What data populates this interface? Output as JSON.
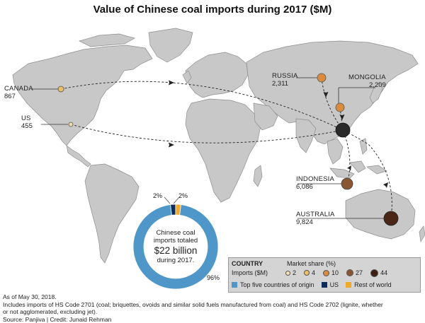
{
  "title": "Value of Chinese coal imports during 2017 ($M)",
  "hub": {
    "name": "China"
  },
  "countries": [
    {
      "name": "CANADA",
      "value": "867",
      "bubble_color": "#e9c06a"
    },
    {
      "name": "US",
      "value": "455",
      "bubble_color": "#f1d9a8"
    },
    {
      "name": "RUSSIA",
      "value": "2,311",
      "bubble_color": "#d98c3e"
    },
    {
      "name": "MONGOLIA",
      "value": "2,209",
      "bubble_color": "#d98c3e"
    },
    {
      "name": "INDONESIA",
      "value": "6,086",
      "bubble_color": "#8a5632"
    },
    {
      "name": "AUSTRALIA",
      "value": "9,824",
      "bubble_color": "#4a2616"
    }
  ],
  "donut": {
    "line1": "Chinese coal",
    "line2": "imports totaled",
    "big": "$22 billion",
    "line3": "during 2017.",
    "segments": [
      {
        "name": "Top five countries of origin",
        "percent": 96,
        "label": "96%",
        "color": "#4e97c8"
      },
      {
        "name": "US",
        "percent": 2,
        "label": "2%",
        "color": "#0d2c5c"
      },
      {
        "name": "Rest of world",
        "percent": 2,
        "label": "2%",
        "color": "#f0a92a"
      }
    ]
  },
  "legend": {
    "country": "COUNTRY",
    "imports": "Imports ($M)",
    "market_share": "Market share (%)",
    "sizes": [
      {
        "label": "2",
        "color": "#f5e0b2"
      },
      {
        "label": "4",
        "color": "#f0c160"
      },
      {
        "label": "10",
        "color": "#d98c3e"
      },
      {
        "label": "27",
        "color": "#8a5632"
      },
      {
        "label": "44",
        "color": "#3e1f12"
      }
    ],
    "top5": "Top five countries of origin",
    "us": "US",
    "rest": "Rest of world"
  },
  "footnotes": {
    "asof": "As of May 30, 2018.",
    "line1": "Includes imports of HS Code 2701 (coal; briquettes, ovoids and similar solid fuels manufactured from coal) and HS Code 2702 (lignite, whether",
    "line2": "or not agglomerated, excluding jet).",
    "source": "Source: Panjiva    |    Credit: Junaid Rehman"
  },
  "colors": {
    "land": "#c8c8c8",
    "land_border": "#8e8e8e",
    "ocean": "#ffffff",
    "hub": "#2a2a2a"
  }
}
